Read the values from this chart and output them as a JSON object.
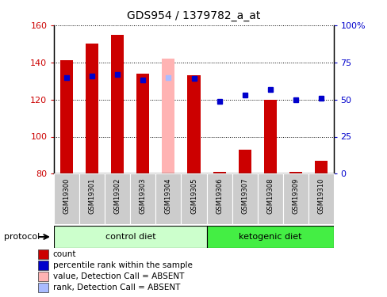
{
  "title": "GDS954 / 1379782_a_at",
  "samples": [
    "GSM19300",
    "GSM19301",
    "GSM19302",
    "GSM19303",
    "GSM19304",
    "GSM19305",
    "GSM19306",
    "GSM19307",
    "GSM19308",
    "GSM19309",
    "GSM19310"
  ],
  "red_values": [
    141,
    150,
    155,
    134,
    null,
    133,
    81,
    93,
    120,
    81,
    87
  ],
  "blue_percentiles": [
    65,
    66,
    67,
    63,
    null,
    64,
    49,
    53,
    57,
    50,
    51
  ],
  "pink_value": 142,
  "pink_percentile": 65,
  "pink_index": 4,
  "ylim_left": [
    80,
    160
  ],
  "ylim_right": [
    0,
    100
  ],
  "yticks_left": [
    80,
    100,
    120,
    140,
    160
  ],
  "yticks_right": [
    0,
    25,
    50,
    75,
    100
  ],
  "ytick_labels_left": [
    "80",
    "100",
    "120",
    "140",
    "160"
  ],
  "ytick_labels_right": [
    "0",
    "25",
    "50",
    "75",
    "100%"
  ],
  "control_diet_indices": [
    0,
    1,
    2,
    3,
    4,
    5
  ],
  "ketogenic_diet_indices": [
    6,
    7,
    8,
    9,
    10
  ],
  "control_label": "control diet",
  "ketogenic_label": "ketogenic diet",
  "protocol_label": "protocol",
  "bar_width": 0.5,
  "red_color": "#CC0000",
  "pink_color": "#FFB3B3",
  "blue_color": "#0000CC",
  "light_blue_color": "#AABBFF",
  "control_green": "#CCFFCC",
  "keto_green": "#44EE44",
  "gray_color": "#CCCCCC",
  "legend_items": [
    {
      "label": "count",
      "color": "#CC0000"
    },
    {
      "label": "percentile rank within the sample",
      "color": "#0000CC"
    },
    {
      "label": "value, Detection Call = ABSENT",
      "color": "#FFB3B3"
    },
    {
      "label": "rank, Detection Call = ABSENT",
      "color": "#AABBFF"
    }
  ]
}
